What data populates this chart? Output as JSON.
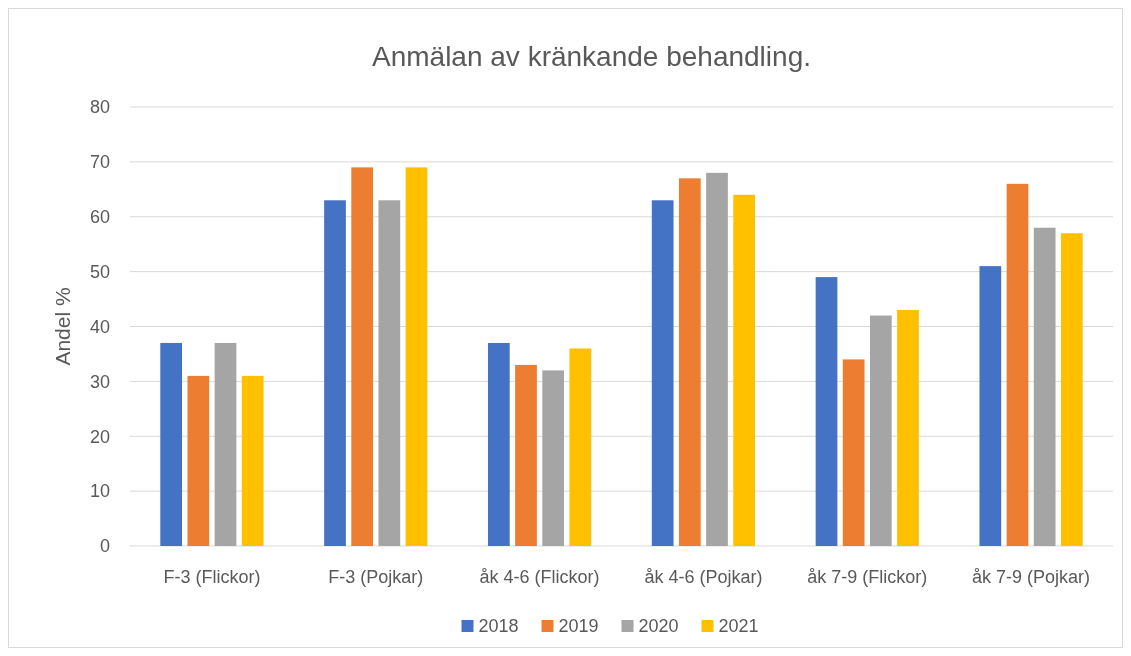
{
  "chart_data": {
    "type": "bar",
    "title": "Anmälan av kränkande behandling.",
    "ylabel": "Andel %",
    "categories": [
      "F-3 (Flickor)",
      "F-3 (Pojkar)",
      "åk 4-6 (Flickor)",
      "åk 4-6 (Pojkar)",
      "åk 7-9 (Flickor)",
      "åk 7-9 (Pojkar)"
    ],
    "series": [
      {
        "name": "2018",
        "color": "#4472c4",
        "values": [
          37,
          63,
          37,
          63,
          49,
          51
        ]
      },
      {
        "name": "2019",
        "color": "#ed7d31",
        "values": [
          31,
          69,
          33,
          67,
          34,
          66
        ]
      },
      {
        "name": "2020",
        "color": "#a5a5a5",
        "values": [
          37,
          63,
          32,
          68,
          42,
          58
        ]
      },
      {
        "name": "2021",
        "color": "#ffc000",
        "values": [
          31,
          69,
          36,
          64,
          43,
          57
        ]
      }
    ],
    "ylim": [
      0,
      80
    ],
    "yticks": [
      0,
      10,
      20,
      30,
      40,
      50,
      60,
      70,
      80
    ],
    "grid": "y",
    "legend": "bottom"
  }
}
